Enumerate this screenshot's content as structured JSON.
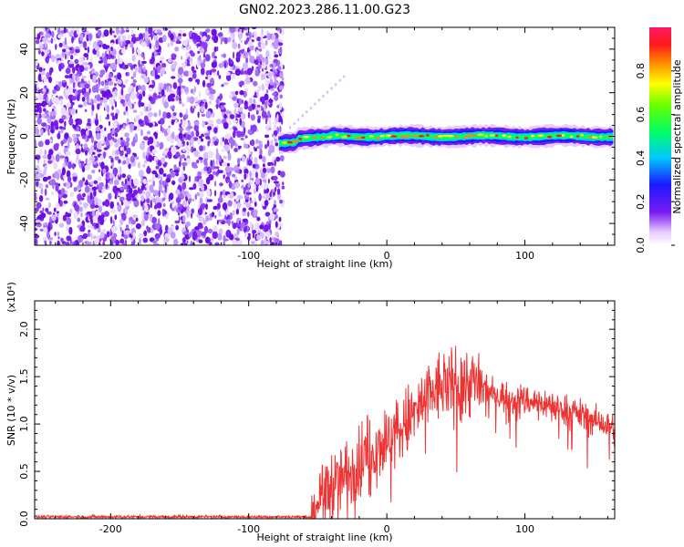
{
  "title": "GN02.2023.286.11.00.G23",
  "colors": {
    "snr_line": "#ee3333",
    "scatter": "#7a1cf0",
    "frame": "#000000"
  },
  "chart_data": [
    {
      "type": "heatmap",
      "title": "GN02.2023.286.11.00.G23",
      "xlabel": "Height of straight line (km)",
      "ylabel": "Frequency (Hz)",
      "xlim": [
        -255,
        165
      ],
      "ylim": [
        -50,
        50
      ],
      "x_ticks": [
        -200,
        -100,
        0,
        100
      ],
      "x_tick_labels": [
        "-200",
        "-100",
        "0",
        "100"
      ],
      "y_ticks": [
        -40,
        -20,
        0,
        20,
        40
      ],
      "y_tick_labels": [
        "-40",
        "-20",
        "0",
        "20",
        "40"
      ],
      "noise_region_x": [
        -255,
        -75
      ],
      "signal_band": {
        "x_start": -78,
        "x_end": 165,
        "center_hz": 0,
        "half_width_hz": 3,
        "dip_center_hz_near_start": -3
      },
      "colorbar": {
        "label": "Normalized spectral amplitude",
        "range": [
          0.0,
          1.0
        ],
        "ticks": [
          0.0,
          0.2,
          0.4,
          0.6,
          0.8
        ],
        "tick_labels": [
          "0.0",
          "0.2",
          "0.4",
          "0.6",
          "0.8"
        ]
      }
    },
    {
      "type": "line",
      "xlabel": "Height of straight line (km)",
      "ylabel": "SNR (10 * v/v)",
      "scale_note": "(x10⁴)",
      "xlim": [
        -255,
        165
      ],
      "ylim": [
        0,
        2.3
      ],
      "x_ticks": [
        -200,
        -100,
        0,
        100
      ],
      "x_tick_labels": [
        "-200",
        "-100",
        "0",
        "100"
      ],
      "y_ticks": [
        0.0,
        0.5,
        1.0,
        1.5,
        2.0
      ],
      "y_tick_labels": [
        "0.0",
        "0.5",
        "1.0",
        "1.5",
        "2.0"
      ],
      "envelope": {
        "x": [
          -255,
          -55,
          -50,
          -40,
          -30,
          -20,
          -10,
          0,
          10,
          20,
          30,
          40,
          50,
          60,
          70,
          80,
          100,
          120,
          140,
          165
        ],
        "y": [
          0.02,
          0.02,
          0.2,
          0.35,
          0.45,
          0.6,
          0.75,
          0.85,
          0.95,
          1.1,
          1.3,
          1.4,
          1.45,
          1.45,
          1.38,
          1.3,
          1.25,
          1.2,
          1.1,
          0.95
        ]
      },
      "noise_amplitude": [
        {
          "x_from": -255,
          "x_to": -55,
          "amp": 0.015
        },
        {
          "x_from": -55,
          "x_to": 0,
          "amp": 0.35
        },
        {
          "x_from": 0,
          "x_to": 70,
          "amp": 0.35
        },
        {
          "x_from": 70,
          "x_to": 165,
          "amp": 0.15
        }
      ]
    }
  ]
}
